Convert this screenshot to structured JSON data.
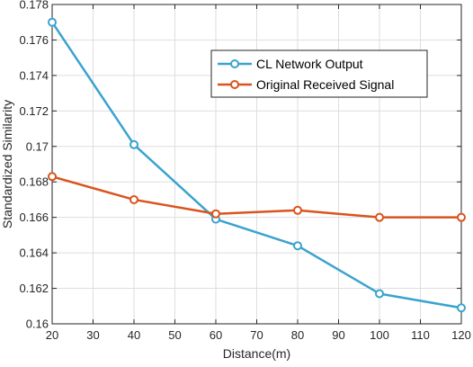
{
  "chart_data": {
    "type": "line",
    "xlabel": "Distance(m)",
    "ylabel": "Standardized Similarity",
    "xlim": [
      20,
      120
    ],
    "ylim": [
      0.16,
      0.178
    ],
    "xticks": [
      20,
      30,
      40,
      50,
      60,
      70,
      80,
      90,
      100,
      110,
      120
    ],
    "xtick_labels": [
      "20",
      "30",
      "40",
      "50",
      "60",
      "70",
      "80",
      "90",
      "100",
      "110",
      "120"
    ],
    "yticks": [
      0.16,
      0.162,
      0.164,
      0.166,
      0.168,
      0.17,
      0.172,
      0.174,
      0.176,
      0.178
    ],
    "ytick_labels": [
      "0.16",
      "0.162",
      "0.164",
      "0.166",
      "0.168",
      "0.17",
      "0.172",
      "0.174",
      "0.176",
      "0.178"
    ],
    "grid": true,
    "legend_position": "top-right",
    "series": [
      {
        "name": "CL Network Output",
        "color": "#3ba3cf",
        "marker": "circle",
        "x": [
          20,
          40,
          60,
          80,
          100,
          120
        ],
        "y": [
          0.177,
          0.1701,
          0.1659,
          0.1644,
          0.1617,
          0.1609
        ]
      },
      {
        "name": "Original Received Signal",
        "color": "#d9541e",
        "marker": "circle",
        "x": [
          20,
          40,
          60,
          80,
          100,
          120
        ],
        "y": [
          0.1683,
          0.167,
          0.1662,
          0.1664,
          0.166,
          0.166
        ]
      }
    ]
  }
}
